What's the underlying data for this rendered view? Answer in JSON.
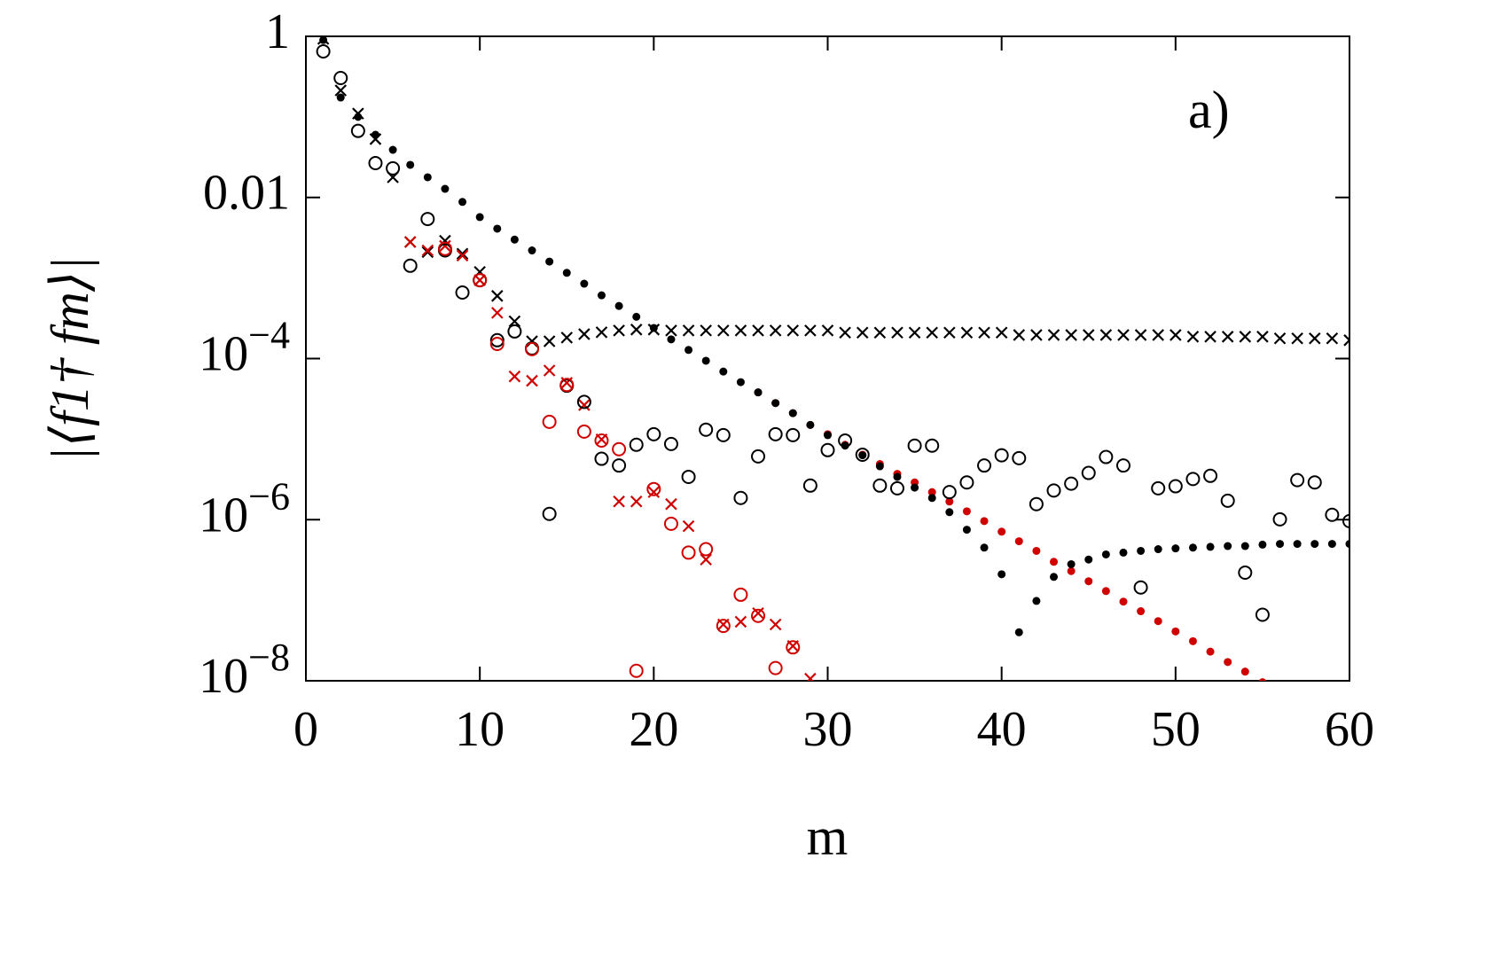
{
  "chart_data": {
    "type": "scatter",
    "annotation": "a)",
    "xlabel": "m",
    "ylabel": "|⟨f1† fm⟩|",
    "log_y": true,
    "xlim": [
      0,
      60
    ],
    "xticks": [
      0,
      10,
      20,
      30,
      40,
      50,
      60
    ],
    "ylim": [
      1e-08,
      1
    ],
    "yticks": [
      1,
      0.01,
      {
        "value": 0.0001,
        "label": "10−4"
      },
      {
        "value": 1e-06,
        "label": "10−6"
      },
      {
        "value": 1e-08,
        "label": "10−8"
      }
    ],
    "x": [
      1,
      2,
      3,
      4,
      5,
      6,
      7,
      8,
      9,
      10,
      11,
      12,
      13,
      14,
      15,
      16,
      17,
      18,
      19,
      20,
      21,
      22,
      23,
      24,
      25,
      26,
      27,
      28,
      29,
      30,
      31,
      32,
      33,
      34,
      35,
      36,
      37,
      38,
      39,
      40,
      41,
      42,
      43,
      44,
      45,
      46,
      47,
      48,
      49,
      50,
      51,
      52,
      53,
      54,
      55,
      56,
      57,
      58,
      59,
      60
    ],
    "series": [
      {
        "marker": "dot",
        "color": "#d00000",
        "values": [
          null,
          null,
          null,
          null,
          null,
          null,
          null,
          null,
          null,
          null,
          null,
          null,
          null,
          null,
          null,
          null,
          null,
          null,
          null,
          null,
          null,
          null,
          null,
          null,
          null,
          3.8e-05,
          2.8e-05,
          2.1e-05,
          1.5e-05,
          1.15e-05,
          8.5e-06,
          6.4e-06,
          4.9e-06,
          3.7e-06,
          2.9e-06,
          2.2e-06,
          1.68e-06,
          1.27e-06,
          9.6e-07,
          7.1e-07,
          5.4e-07,
          4.1e-07,
          3e-07,
          2.3e-07,
          1.72e-07,
          1.3e-07,
          9.6e-08,
          7.3e-08,
          5.5e-08,
          4.1e-08,
          3.1e-08,
          2.3e-08,
          1.71e-08,
          1.3e-08,
          9.6e-09,
          null,
          null,
          null,
          null,
          null
        ]
      },
      {
        "marker": "dot",
        "color": "#000000",
        "values": [
          0.9,
          0.174,
          0.1,
          0.06,
          0.039,
          0.0254,
          0.0178,
          0.0128,
          0.0088,
          0.0057,
          0.0041,
          0.003,
          0.0022,
          0.0016,
          0.00116,
          0.00085,
          0.00061,
          0.00045,
          0.00033,
          0.00024,
          0.000173,
          0.000128,
          9.4e-05,
          6.9e-05,
          5.1e-05,
          3.8e-05,
          2.8e-05,
          2.1e-05,
          1.5e-05,
          1.12e-05,
          8.3e-06,
          6.3e-06,
          4.6e-06,
          3.4e-06,
          2.5e-06,
          1.86e-06,
          1.24e-06,
          7.5e-07,
          4.5e-07,
          2.1e-07,
          4e-08,
          9.8e-08,
          1.95e-07,
          2.8e-07,
          3.2e-07,
          3.7e-07,
          3.9e-07,
          4.1e-07,
          4.3e-07,
          4.4e-07,
          4.5e-07,
          4.6e-07,
          4.7e-07,
          4.7e-07,
          4.9e-07,
          5e-07,
          5e-07,
          5e-07,
          5e-07,
          5e-07
        ]
      },
      {
        "marker": "cross",
        "color": "#000000",
        "values": [
          0.93,
          0.213,
          0.11,
          0.053,
          0.0178,
          0.0028,
          0.0021,
          0.0029,
          0.002,
          0.00119,
          0.0006,
          0.00029,
          0.000164,
          0.000164,
          0.000182,
          0.000201,
          0.000212,
          0.000223,
          0.000229,
          0.000229,
          0.000223,
          0.000223,
          0.000223,
          0.000223,
          0.000223,
          0.000223,
          0.000223,
          0.000223,
          0.000223,
          0.000223,
          0.00021,
          0.00021,
          0.00021,
          0.00021,
          0.00021,
          0.00021,
          0.00021,
          0.00021,
          0.00021,
          0.00021,
          0.000196,
          0.000196,
          0.000196,
          0.000196,
          0.000196,
          0.000196,
          0.000196,
          0.000196,
          0.000196,
          0.000196,
          0.000187,
          0.000187,
          0.000187,
          0.000187,
          0.000187,
          0.000178,
          0.000178,
          0.000178,
          0.000178,
          0.000169
        ]
      },
      {
        "marker": "cross",
        "color": "#d00000",
        "values": [
          null,
          null,
          null,
          null,
          null,
          0.0028,
          0.0022,
          0.0025,
          0.0019,
          0.00094,
          0.00037,
          6e-05,
          5.3e-05,
          7.1e-05,
          5e-05,
          2.65e-05,
          9.9e-06,
          1.68e-06,
          1.68e-06,
          2.2e-06,
          1.56e-06,
          8.3e-07,
          3.2e-07,
          5e-08,
          5.4e-08,
          6.9e-08,
          5e-08,
          2.7e-08,
          1.06e-08,
          null,
          null,
          null,
          null,
          null,
          null,
          null,
          null,
          null,
          null,
          null,
          null,
          null,
          null,
          null,
          null,
          null,
          null,
          null,
          null,
          null,
          null,
          null,
          null,
          null,
          null,
          null,
          null,
          null,
          null,
          null
        ]
      },
      {
        "marker": "circle",
        "color": "#000000",
        "values": [
          0.65,
          0.304,
          0.067,
          0.0267,
          0.023,
          0.00142,
          0.0054,
          0.0022,
          0.00066,
          0.00094,
          0.000169,
          0.000217,
          0.000134,
          1.18e-06,
          4.6e-05,
          2.9e-05,
          5.7e-06,
          4.7e-06,
          8.5e-06,
          1.15e-05,
          8.7e-06,
          3.4e-06,
          1.31e-05,
          1.12e-05,
          1.86e-06,
          6.1e-06,
          1.15e-05,
          1.12e-05,
          2.65e-06,
          7.3e-06,
          9.6e-06,
          6.4e-06,
          2.65e-06,
          2.45e-06,
          8.3e-06,
          8.3e-06,
          2.2e-06,
          2.9e-06,
          4.7e-06,
          6.3e-06,
          5.8e-06,
          1.56e-06,
          2.3e-06,
          2.8e-06,
          3.8e-06,
          6e-06,
          4.7e-06,
          1.44e-07,
          2.45e-06,
          2.6e-06,
          3.2e-06,
          3.5e-06,
          1.72e-06,
          2.2e-07,
          6.6e-08,
          1.01e-06,
          3.1e-06,
          2.9e-06,
          1.15e-06,
          9.6e-07
        ]
      },
      {
        "marker": "circle",
        "color": "#d00000",
        "values": [
          null,
          null,
          null,
          null,
          null,
          null,
          null,
          0.0023,
          null,
          0.00094,
          0.000152,
          null,
          0.000131,
          1.64e-05,
          4.7e-05,
          1.24e-05,
          9.6e-06,
          7.5e-06,
          1.33e-08,
          2.4e-06,
          8.9e-07,
          3.9e-07,
          4.3e-07,
          4.8e-08,
          1.17e-07,
          6.4e-08,
          1.44e-08,
          2.6e-08,
          null,
          null,
          null,
          null,
          null,
          null,
          null,
          null,
          null,
          null,
          null,
          null,
          null,
          null,
          null,
          null,
          null,
          null,
          null,
          null,
          null,
          null,
          null,
          null,
          null,
          null,
          null,
          null,
          null,
          null,
          null,
          null
        ]
      }
    ]
  }
}
